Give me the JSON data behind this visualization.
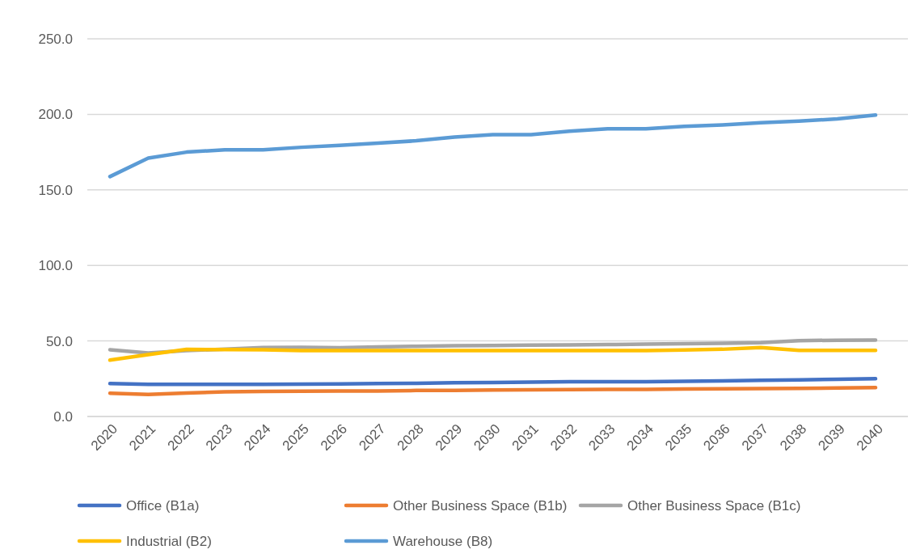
{
  "chart_data": {
    "type": "line",
    "categories": [
      "2020",
      "2021",
      "2022",
      "2023",
      "2024",
      "2025",
      "2026",
      "2027",
      "2028",
      "2029",
      "2030",
      "2031",
      "2032",
      "2033",
      "2034",
      "2035",
      "2036",
      "2037",
      "2038",
      "2039",
      "2040"
    ],
    "ylim": [
      0,
      250
    ],
    "yticks": [
      {
        "value": 0,
        "label": "0.0"
      },
      {
        "value": 50,
        "label": "50.0"
      },
      {
        "value": 100,
        "label": "100.0"
      },
      {
        "value": 150,
        "label": "150.0"
      },
      {
        "value": 200,
        "label": "200.0"
      },
      {
        "value": 250,
        "label": "250.0"
      }
    ],
    "grid": "y",
    "legend": "bottom",
    "marker": "none",
    "line_style": "solid",
    "series": [
      {
        "name": "Office (B1a)",
        "color": "#4472c4",
        "values": [
          21.8,
          21.3,
          21.3,
          21.3,
          21.3,
          21.4,
          21.6,
          21.8,
          22,
          22.3,
          22.5,
          22.7,
          23,
          23,
          23,
          23.3,
          23.6,
          24,
          24.2,
          24.6,
          25
        ]
      },
      {
        "name": "Other Business Space (B1b)",
        "color": "#ed7d31",
        "values": [
          15.4,
          14.6,
          15.5,
          16.3,
          16.6,
          16.7,
          16.8,
          16.9,
          17.2,
          17.3,
          17.5,
          17.7,
          17.8,
          17.9,
          18,
          18.2,
          18.4,
          18.5,
          18.6,
          18.9,
          19.2
        ]
      },
      {
        "name": "Other Business Space (B1c)",
        "color": "#a5a5a5",
        "values": [
          44.2,
          42,
          43.6,
          44.6,
          45.6,
          45.8,
          45.5,
          46,
          46.5,
          46.8,
          47,
          47.2,
          47.4,
          47.6,
          47.9,
          48.2,
          48.5,
          48.9,
          50.2,
          50.5,
          50.6
        ]
      },
      {
        "name": "Industrial (B2)",
        "color": "#ffc000",
        "values": [
          37.3,
          41,
          44.4,
          44.3,
          44.2,
          43.6,
          43.6,
          43.6,
          43.6,
          43.6,
          43.6,
          43.6,
          43.6,
          43.6,
          43.6,
          44,
          44.5,
          45.7,
          43.8,
          43.8,
          43.8
        ]
      },
      {
        "name": "Warehouse (B8)",
        "color": "#5b9bd5",
        "values": [
          158.8,
          171,
          175,
          176.5,
          176.5,
          178.2,
          179.5,
          181,
          182.5,
          185,
          186.6,
          186.6,
          188.8,
          190.5,
          190.5,
          192,
          193,
          194.5,
          195.5,
          197,
          199.5
        ]
      }
    ]
  }
}
